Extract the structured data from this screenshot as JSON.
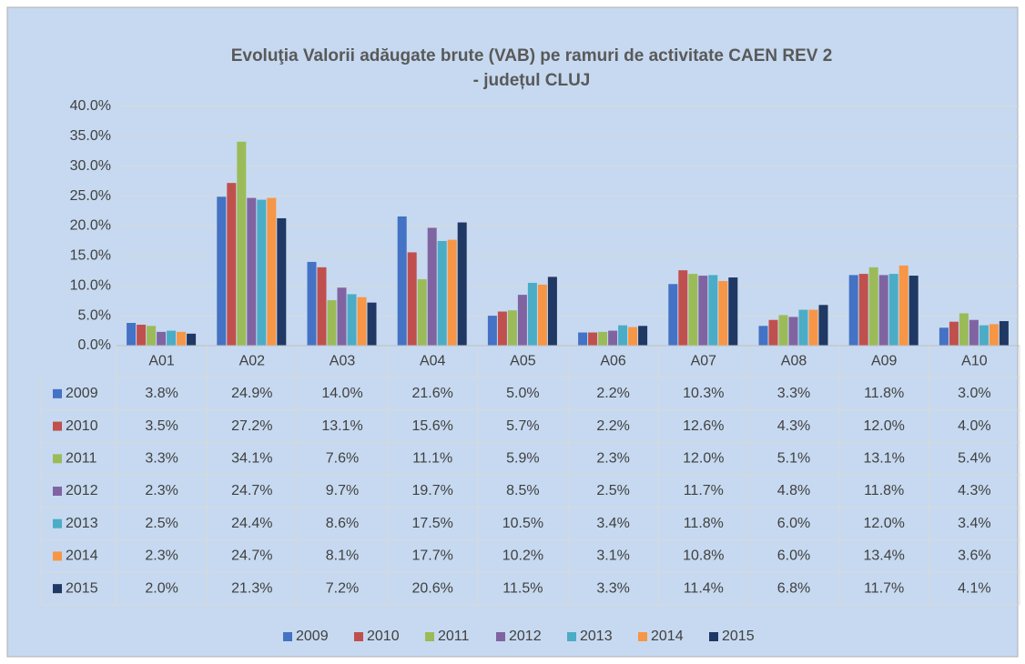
{
  "chart_data": {
    "type": "bar",
    "title": [
      "Evoluţia Valorii adăugate brute (VAB) pe ramuri de activitate CAEN REV 2",
      "- județul CLUJ"
    ],
    "categories": [
      "A01",
      "A02",
      "A03",
      "A04",
      "A05",
      "A06",
      "A07",
      "A08",
      "A09",
      "A10"
    ],
    "series": [
      {
        "name": "2009",
        "color": "#4472c4",
        "values": [
          3.8,
          24.9,
          14.0,
          21.6,
          5.0,
          2.2,
          10.3,
          3.3,
          11.8,
          3.0
        ],
        "value_labels": [
          "3.8%",
          "24.9%",
          "14.0%",
          "21.6%",
          "5.0%",
          "2.2%",
          "10.3%",
          "3.3%",
          "11.8%",
          "3.0%"
        ]
      },
      {
        "name": "2010",
        "color": "#c0504d",
        "values": [
          3.5,
          27.2,
          13.1,
          15.6,
          5.7,
          2.2,
          12.6,
          4.3,
          12.0,
          4.0
        ],
        "value_labels": [
          "3.5%",
          "27.2%",
          "13.1%",
          "15.6%",
          "5.7%",
          "2.2%",
          "12.6%",
          "4.3%",
          "12.0%",
          "4.0%"
        ]
      },
      {
        "name": "2011",
        "color": "#9bbb59",
        "values": [
          3.3,
          34.1,
          7.6,
          11.1,
          5.9,
          2.3,
          12.0,
          5.1,
          13.1,
          5.4
        ],
        "value_labels": [
          "3.3%",
          "34.1%",
          "7.6%",
          "11.1%",
          "5.9%",
          "2.3%",
          "12.0%",
          "5.1%",
          "13.1%",
          "5.4%"
        ]
      },
      {
        "name": "2012",
        "color": "#8064a2",
        "values": [
          2.3,
          24.7,
          9.7,
          19.7,
          8.5,
          2.5,
          11.7,
          4.8,
          11.8,
          4.3
        ],
        "value_labels": [
          "2.3%",
          "24.7%",
          "9.7%",
          "19.7%",
          "8.5%",
          "2.5%",
          "11.7%",
          "4.8%",
          "11.8%",
          "4.3%"
        ]
      },
      {
        "name": "2013",
        "color": "#4bacc6",
        "values": [
          2.5,
          24.4,
          8.6,
          17.5,
          10.5,
          3.4,
          11.8,
          6.0,
          12.0,
          3.4
        ],
        "value_labels": [
          "2.5%",
          "24.4%",
          "8.6%",
          "17.5%",
          "10.5%",
          "3.4%",
          "11.8%",
          "6.0%",
          "12.0%",
          "3.4%"
        ]
      },
      {
        "name": "2014",
        "color": "#f79646",
        "values": [
          2.3,
          24.7,
          8.1,
          17.7,
          10.2,
          3.1,
          10.8,
          6.0,
          13.4,
          3.6
        ],
        "value_labels": [
          "2.3%",
          "24.7%",
          "8.1%",
          "17.7%",
          "10.2%",
          "3.1%",
          "10.8%",
          "6.0%",
          "13.4%",
          "3.6%"
        ]
      },
      {
        "name": "2015",
        "color": "#1f3864",
        "values": [
          2.0,
          21.3,
          7.2,
          20.6,
          11.5,
          3.3,
          11.4,
          6.8,
          11.7,
          4.1
        ],
        "value_labels": [
          "2.0%",
          "21.3%",
          "7.2%",
          "20.6%",
          "11.5%",
          "3.3%",
          "11.4%",
          "6.8%",
          "11.7%",
          "4.1%"
        ]
      }
    ],
    "ylim": [
      0,
      40
    ],
    "yticks": [
      {
        "value": 0,
        "label": "0.0%"
      },
      {
        "value": 5,
        "label": "5.0%"
      },
      {
        "value": 10,
        "label": "10.0%"
      },
      {
        "value": 15,
        "label": "15.0%"
      },
      {
        "value": 20,
        "label": "20.0%"
      },
      {
        "value": 25,
        "label": "25.0%"
      },
      {
        "value": 30,
        "label": "30.0%"
      },
      {
        "value": 35,
        "label": "35.0%"
      },
      {
        "value": 40,
        "label": "40.0%"
      }
    ],
    "grid": true,
    "legend": "bottom"
  }
}
